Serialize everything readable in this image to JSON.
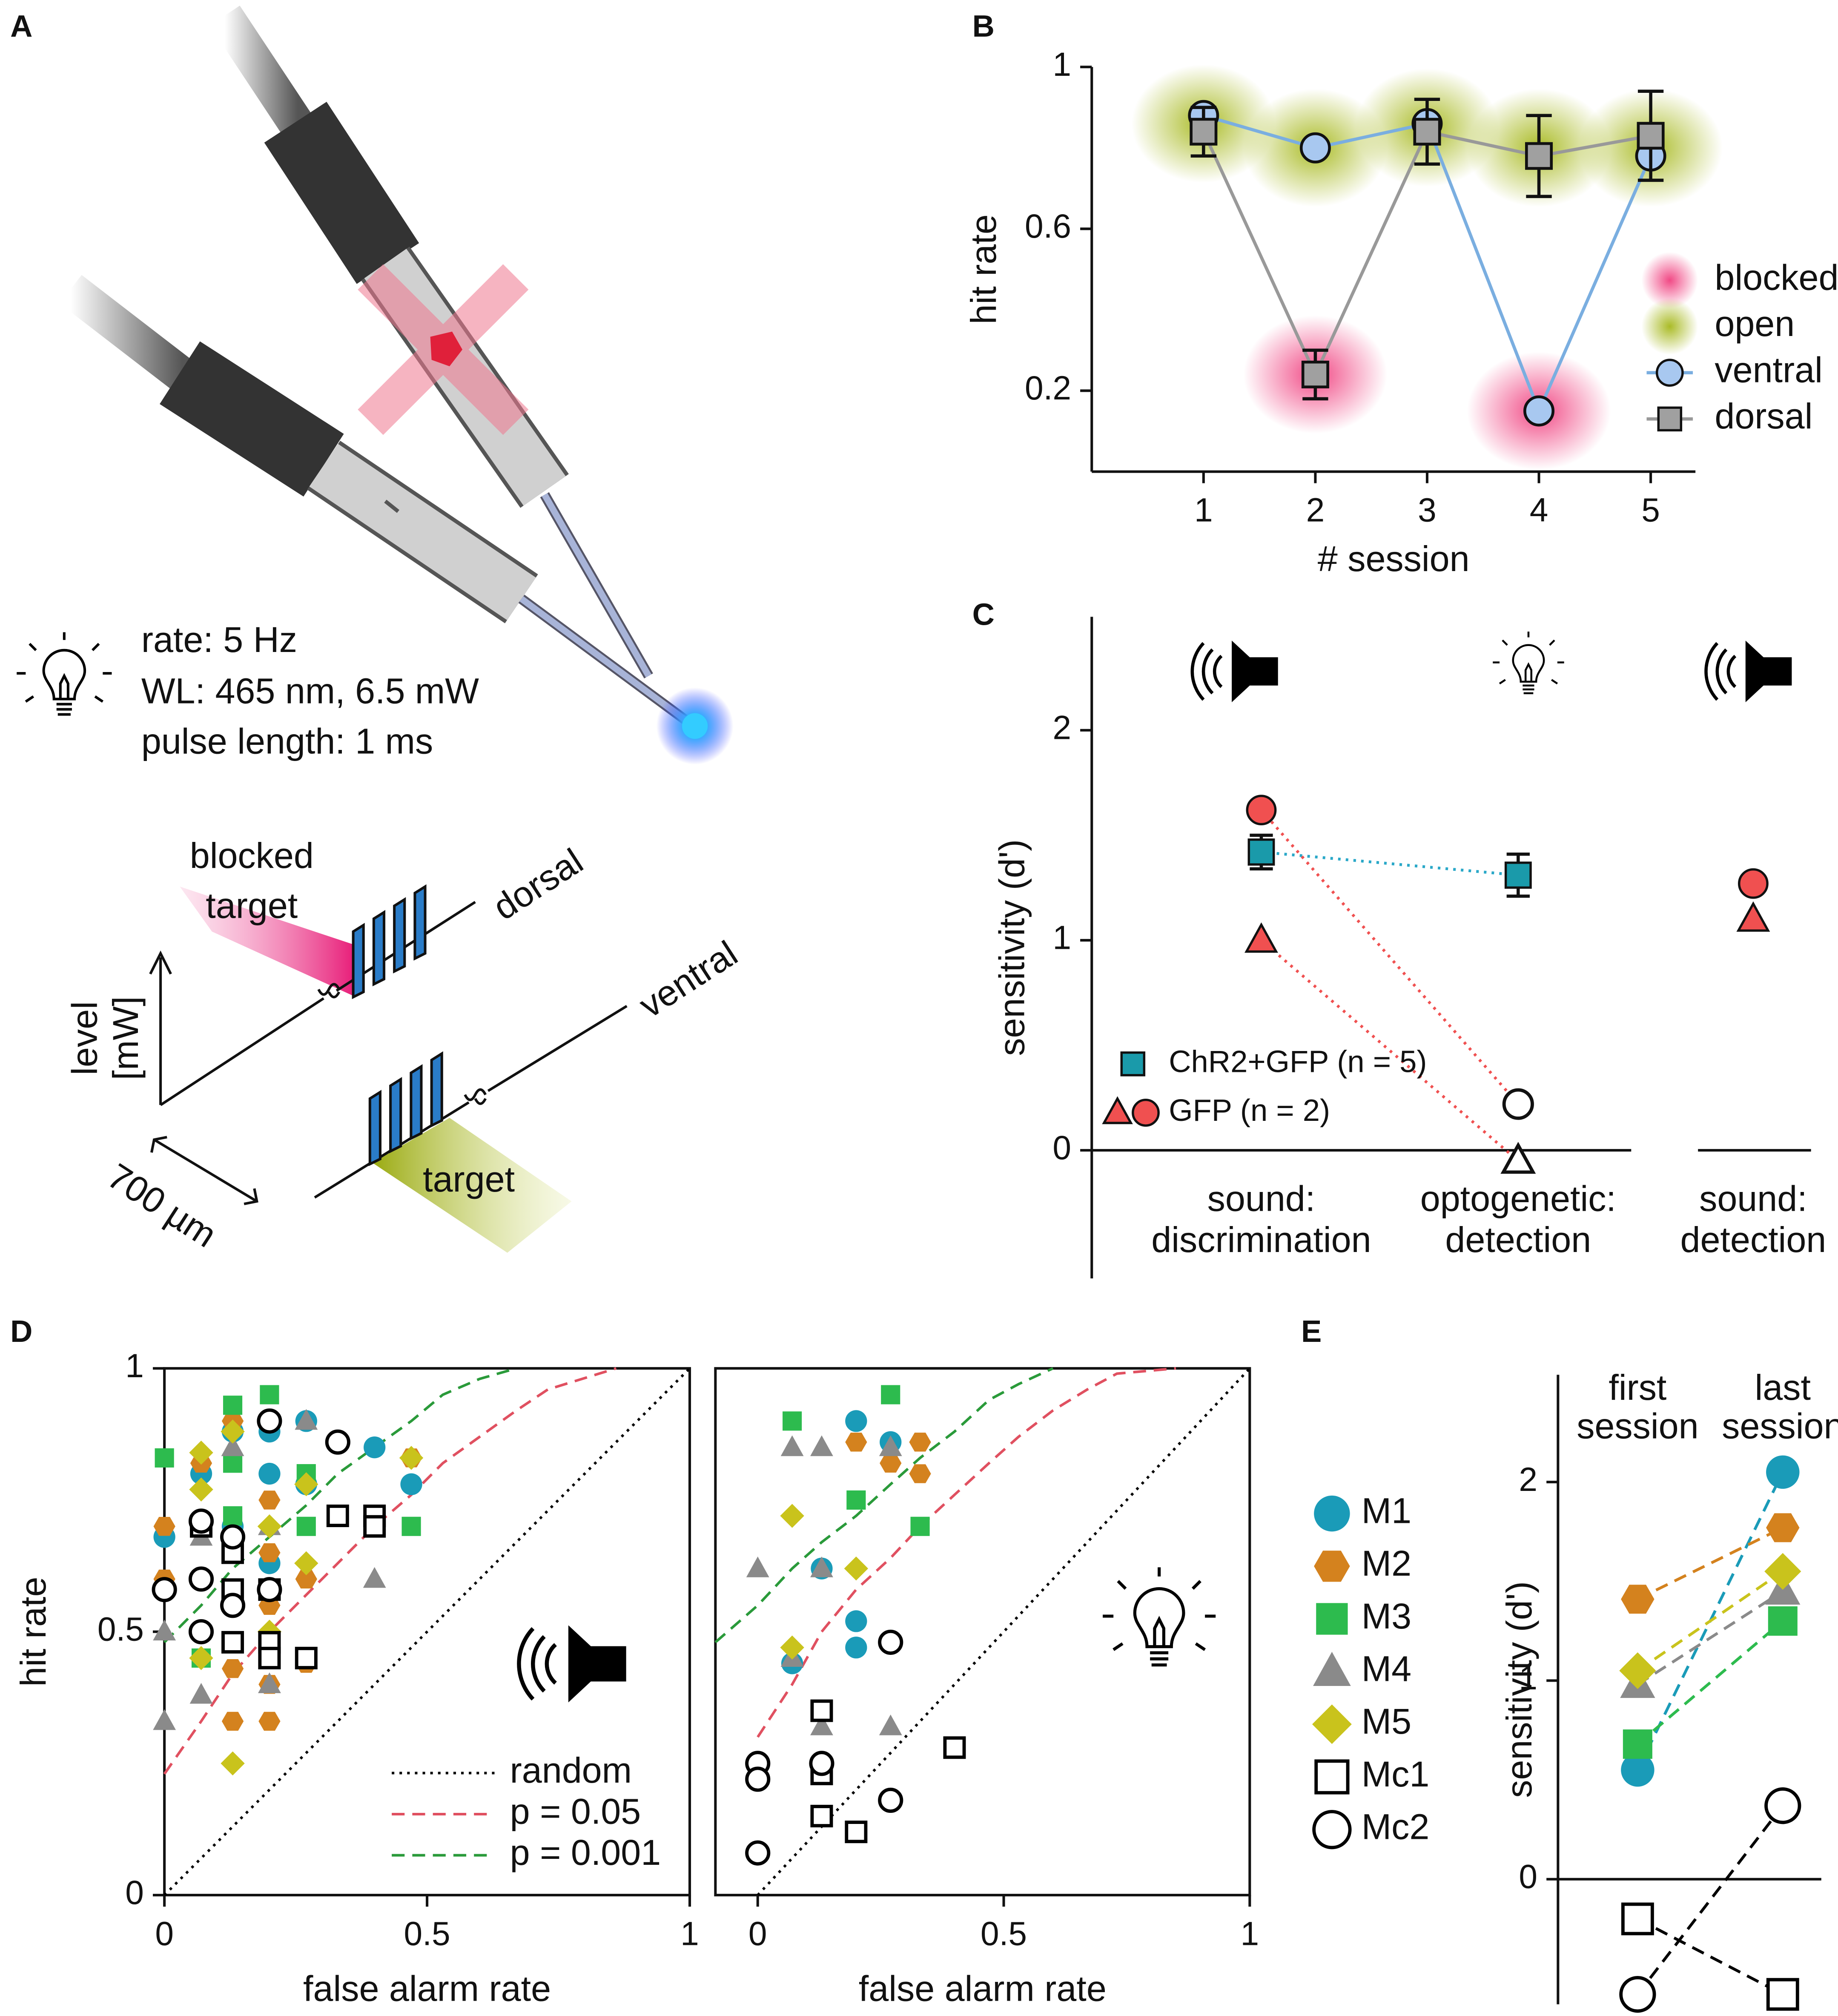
{
  "panel_labels": [
    "A",
    "B",
    "C",
    "D",
    "E"
  ],
  "diagram": {
    "stimulus": [
      "rate: 5 Hz",
      "WL: 465 nm, 6.5 mW",
      "pulse length: 1 ms"
    ],
    "labels": {
      "blocked": "blocked",
      "blocked_target": "target",
      "dorsal": "dorsal",
      "ventral": "ventral",
      "level": "level",
      "unit": "[mW]",
      "distance": "700 µm",
      "target": "target"
    }
  },
  "chart_data": [
    {
      "type": "line",
      "xlabel": "# session",
      "ylabel": "hit rate",
      "x": [
        1,
        2,
        3,
        4,
        5
      ],
      "xlim": [
        0,
        5.4
      ],
      "xticks": [
        1,
        2,
        3,
        4,
        5
      ],
      "ylim": [
        0,
        1
      ],
      "yticks": [
        0.2,
        0.6,
        1
      ],
      "legend": "center right",
      "series": [
        {
          "name": "blocked",
          "color": "#f0407f",
          "marker": "glow",
          "values": [
            null,
            0.24,
            null,
            0.15,
            null
          ]
        },
        {
          "name": "open",
          "color": "#a6b81c",
          "marker": "glow",
          "values": [
            0.86,
            0.8,
            0.85,
            0.8,
            0.8
          ]
        },
        {
          "name": "ventral",
          "color": "#a8c8f0",
          "line_color": "#7aaee0",
          "marker": "circle",
          "values": [
            0.88,
            0.8,
            0.86,
            0.15,
            0.78
          ]
        },
        {
          "name": "dorsal",
          "color": "#a0a0a0",
          "line_color": "#999999",
          "marker": "square",
          "values": [
            0.84,
            0.24,
            0.84,
            0.78,
            0.83
          ],
          "errors": [
            0.06,
            0.06,
            0.08,
            0.1,
            0.11
          ]
        }
      ]
    },
    {
      "type": "dot",
      "ylabel": "sensitivity (d')",
      "categories": [
        [
          "sound:",
          "discrimination"
        ],
        [
          "optogenetic:",
          "detection"
        ],
        [
          "sound:",
          "detection"
        ]
      ],
      "ylim": [
        -0.61,
        2.54
      ],
      "yticks": [
        0,
        1,
        2
      ],
      "legend": "lower left",
      "series": [
        {
          "name": "ChR2+GFP (n = 5)",
          "color": "#1a9aaa",
          "line_color": "#2aa8c8",
          "marker": "square",
          "line": "dotted",
          "values": [
            1.42,
            1.31,
            null
          ],
          "errors": [
            0.08,
            0.1,
            null
          ]
        },
        {
          "color": "#f05050",
          "marker": "triangle",
          "line": "dotted",
          "values": [
            1.0,
            -0.05,
            1.1
          ],
          "filled": [
            true,
            false,
            true
          ]
        },
        {
          "name": "GFP (n = 2)",
          "color": "#f05050",
          "marker": "circle",
          "line": "dotted",
          "values": [
            1.62,
            0.22,
            1.27
          ],
          "filled": [
            true,
            false,
            true
          ]
        }
      ]
    },
    {
      "type": "scatter",
      "xlabel": "false alarm rate",
      "ylabel": "hit rate",
      "xlim": [
        0,
        1
      ],
      "xticks": [
        0,
        0.5,
        1
      ],
      "ylim": [
        0,
        1
      ],
      "yticks": [
        0,
        0.5,
        1
      ],
      "legend": "lower right",
      "series": [
        {
          "name": "random",
          "color": "#000000",
          "line": "dotted",
          "x": [
            0,
            1
          ],
          "values": [
            0,
            1
          ]
        },
        {
          "name": "p = 0.05",
          "color": "#e05060",
          "line": "dashed",
          "x": [
            0,
            0.07,
            0.13,
            0.2,
            0.27,
            0.33,
            0.4,
            0.47,
            0.53,
            0.6,
            0.67,
            0.73,
            0.86
          ],
          "values": [
            0.23,
            0.33,
            0.42,
            0.5,
            0.57,
            0.63,
            0.7,
            0.76,
            0.82,
            0.87,
            0.92,
            0.96,
            1
          ]
        },
        {
          "name": "p = 0.001",
          "color": "#2a9a3a",
          "line": "dashed",
          "x": [
            0,
            0.07,
            0.13,
            0.2,
            0.27,
            0.33,
            0.4,
            0.47,
            0.53,
            0.6,
            0.67
          ],
          "values": [
            0.48,
            0.55,
            0.62,
            0.68,
            0.74,
            0.8,
            0.85,
            0.9,
            0.95,
            0.98,
            1
          ]
        },
        {
          "color": "#1a9bb8",
          "marker": "circle",
          "x": [
            0,
            0.07,
            0.07,
            0.13,
            0.2,
            0.2,
            0.27,
            0.27,
            0.4,
            0.47,
            0.13,
            0.2
          ],
          "values": [
            0.68,
            0.8,
            0.7,
            0.88,
            0.8,
            0.88,
            0.9,
            0.78,
            0.85,
            0.78,
            0.7,
            0.63
          ]
        },
        {
          "color": "#d4821e",
          "marker": "hexagon",
          "x": [
            0,
            0,
            0.07,
            0.07,
            0.13,
            0.13,
            0.13,
            0.2,
            0.2,
            0.2,
            0.2,
            0.27,
            0.27,
            0.47,
            0.2,
            0.13
          ],
          "values": [
            0.7,
            0.6,
            0.82,
            0.7,
            0.43,
            0.33,
            0.9,
            0.75,
            0.65,
            0.33,
            0.4,
            0.44,
            0.6,
            0.83,
            0.55,
            0.55
          ]
        },
        {
          "color": "#2dbb4e",
          "marker": "square",
          "x": [
            0,
            0.13,
            0.13,
            0.13,
            0.2,
            0.27,
            0.27,
            0.47,
            0.13,
            0.07
          ],
          "values": [
            0.83,
            0.93,
            0.82,
            0.72,
            0.95,
            0.8,
            0.7,
            0.7,
            0.65,
            0.45
          ]
        },
        {
          "color": "#8a8a8a",
          "marker": "triangle",
          "x": [
            0,
            0,
            0.07,
            0.07,
            0.13,
            0.2,
            0.2,
            0.27,
            0.4
          ],
          "values": [
            0.33,
            0.5,
            0.38,
            0.68,
            0.85,
            0.4,
            0.7,
            0.9,
            0.6
          ]
        },
        {
          "color": "#c9c31c",
          "marker": "diamond",
          "x": [
            0.07,
            0.07,
            0.13,
            0.13,
            0.2,
            0.2,
            0.27,
            0.27,
            0.47,
            0.07
          ],
          "values": [
            0.84,
            0.77,
            0.88,
            0.25,
            0.7,
            0.5,
            0.78,
            0.63,
            0.83,
            0.45
          ]
        },
        {
          "color": "#000000",
          "marker": "square",
          "filled": false,
          "x": [
            0.07,
            0.13,
            0.13,
            0.13,
            0.2,
            0.2,
            0.27,
            0.33,
            0.4,
            0.4,
            0.2
          ],
          "values": [
            0.7,
            0.65,
            0.58,
            0.48,
            0.48,
            0.45,
            0.45,
            0.72,
            0.72,
            0.7,
            0.58
          ]
        },
        {
          "color": "#000000",
          "marker": "circle",
          "filled": false,
          "x": [
            0,
            0.07,
            0.07,
            0.07,
            0.13,
            0.13,
            0.2,
            0.2,
            0.33
          ],
          "values": [
            0.58,
            0.71,
            0.6,
            0.5,
            0.68,
            0.55,
            0.9,
            0.58,
            0.86
          ]
        }
      ]
    },
    {
      "type": "scatter",
      "xlabel": "false alarm rate",
      "xlim": [
        -0.086,
        1
      ],
      "xticks": [
        0,
        0.5,
        1
      ],
      "ylim": [
        0,
        1
      ],
      "series": [
        {
          "color": "#000000",
          "line": "dotted",
          "x": [
            0,
            1
          ],
          "values": [
            0,
            1
          ]
        },
        {
          "color": "#e05060",
          "line": "dashed",
          "x": [
            0,
            0.07,
            0.13,
            0.2,
            0.27,
            0.33,
            0.4,
            0.47,
            0.53,
            0.6,
            0.67,
            0.73,
            0.85
          ],
          "values": [
            0.3,
            0.4,
            0.5,
            0.58,
            0.64,
            0.7,
            0.76,
            0.82,
            0.87,
            0.92,
            0.96,
            0.99,
            1
          ]
        },
        {
          "color": "#2a9a3a",
          "line": "dashed",
          "x": [
            -0.086,
            0,
            0.07,
            0.13,
            0.2,
            0.27,
            0.33,
            0.4,
            0.47,
            0.53,
            0.6
          ],
          "values": [
            0.48,
            0.55,
            0.62,
            0.67,
            0.72,
            0.78,
            0.83,
            0.88,
            0.94,
            0.97,
            1
          ]
        },
        {
          "color": "#1a9bb8",
          "marker": "circle",
          "x": [
            0.2,
            0.27,
            0.13,
            0.07,
            0.2,
            0.2
          ],
          "values": [
            0.9,
            0.86,
            0.62,
            0.44,
            0.52,
            0.47
          ]
        },
        {
          "color": "#d4821e",
          "marker": "hexagon",
          "x": [
            0.2,
            0.33,
            0.33,
            0.27
          ],
          "values": [
            0.86,
            0.86,
            0.8,
            0.82
          ]
        },
        {
          "color": "#2dbb4e",
          "marker": "square",
          "x": [
            0.07,
            0.27,
            0.2,
            0.33
          ],
          "values": [
            0.9,
            0.95,
            0.75,
            0.7
          ]
        },
        {
          "color": "#8a8a8a",
          "marker": "triangle",
          "x": [
            0,
            0.07,
            0.13,
            0.13,
            0.27,
            0.07,
            0.27,
            0.13
          ],
          "values": [
            0.62,
            0.85,
            0.85,
            0.62,
            0.85,
            0.45,
            0.32,
            0.32
          ]
        },
        {
          "color": "#c9c31c",
          "marker": "diamond",
          "x": [
            0.07,
            0.2,
            0.07
          ],
          "values": [
            0.72,
            0.62,
            0.47
          ]
        },
        {
          "color": "#000000",
          "marker": "square",
          "filled": false,
          "x": [
            0.13,
            0.13,
            0.13,
            0.2,
            0.4
          ],
          "values": [
            0.35,
            0.23,
            0.15,
            0.12,
            0.28
          ]
        },
        {
          "color": "#000000",
          "marker": "circle",
          "filled": false,
          "x": [
            0,
            0,
            0,
            0.13,
            0.27,
            0.27
          ],
          "values": [
            0.25,
            0.22,
            0.08,
            0.25,
            0.48,
            0.18
          ]
        }
      ]
    },
    {
      "type": "dot",
      "ylabel": "sensitivity (d')",
      "categories": [
        [
          "first",
          "session"
        ],
        [
          "last",
          "session"
        ]
      ],
      "ylim": [
        -0.63,
        2.54
      ],
      "yticks": [
        0,
        1,
        2
      ],
      "legend": "left",
      "series": [
        {
          "name": "M1",
          "color": "#1a9bb8",
          "marker": "circle",
          "line": "dashed",
          "values": [
            0.55,
            2.05
          ]
        },
        {
          "name": "M2",
          "color": "#d4821e",
          "marker": "hexagon",
          "line": "dashed",
          "values": [
            1.41,
            1.77
          ]
        },
        {
          "name": "M3",
          "color": "#2dbb4e",
          "marker": "square",
          "line": "dashed",
          "values": [
            0.68,
            1.3
          ]
        },
        {
          "name": "M4",
          "color": "#8a8a8a",
          "marker": "triangle",
          "line": "dashed",
          "values": [
            0.98,
            1.45
          ]
        },
        {
          "name": "M5",
          "color": "#c9c31c",
          "marker": "diamond",
          "line": "dashed",
          "values": [
            1.05,
            1.55
          ]
        },
        {
          "name": "Mc1",
          "color": "#000000",
          "marker": "square",
          "filled": false,
          "line": "dashed",
          "values": [
            -0.2,
            -0.58
          ]
        },
        {
          "name": "Mc2",
          "color": "#000000",
          "marker": "circle",
          "filled": false,
          "line": "dashed",
          "values": [
            -0.58,
            0.37
          ]
        }
      ]
    }
  ]
}
